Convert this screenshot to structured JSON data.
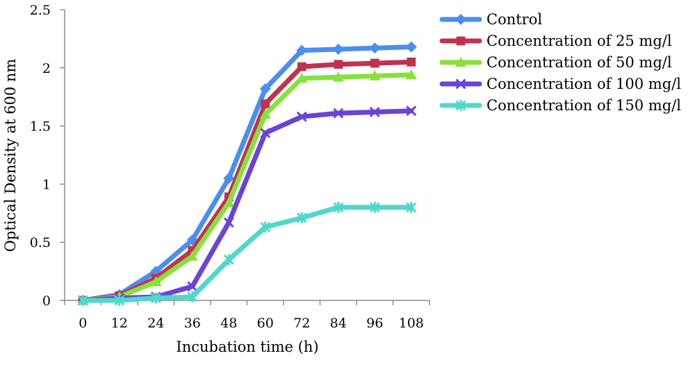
{
  "chart_data": {
    "type": "line",
    "title": "",
    "xlabel": "Incubation time (h)",
    "ylabel": "Optical Density at 600 nm",
    "categories": [
      "0",
      "12",
      "24",
      "36",
      "48",
      "60",
      "72",
      "84",
      "96",
      "108"
    ],
    "ylim": [
      0,
      2.5
    ],
    "yticks": [
      "0",
      "0.5",
      "1",
      "1.5",
      "2",
      "2.5"
    ],
    "grid": false,
    "legend_position": "right",
    "series": [
      {
        "name": "Control",
        "color": "#4a8ef0",
        "marker": "diamond",
        "values": [
          0,
          0.05,
          0.25,
          0.52,
          1.05,
          1.82,
          2.15,
          2.16,
          2.17,
          2.18
        ]
      },
      {
        "name": "Concentration of 25 mg/l",
        "color": "#c0334f",
        "marker": "square",
        "values": [
          0,
          0.04,
          0.19,
          0.43,
          0.89,
          1.69,
          2.01,
          2.03,
          2.04,
          2.05
        ]
      },
      {
        "name": "Concentration of 50 mg/l",
        "color": "#86e23a",
        "marker": "triangle",
        "values": [
          0,
          0.03,
          0.16,
          0.38,
          0.84,
          1.6,
          1.91,
          1.92,
          1.93,
          1.94
        ]
      },
      {
        "name": "Concentration of 100 mg/l",
        "color": "#6a43d8",
        "marker": "x",
        "values": [
          0,
          0.02,
          0.03,
          0.12,
          0.67,
          1.44,
          1.58,
          1.61,
          1.62,
          1.63
        ]
      },
      {
        "name": "Concentration of 150 mg/l",
        "color": "#4fd8cc",
        "marker": "star",
        "values": [
          0,
          0,
          0.02,
          0.03,
          0.35,
          0.63,
          0.71,
          0.8,
          0.8,
          0.8
        ]
      }
    ]
  }
}
